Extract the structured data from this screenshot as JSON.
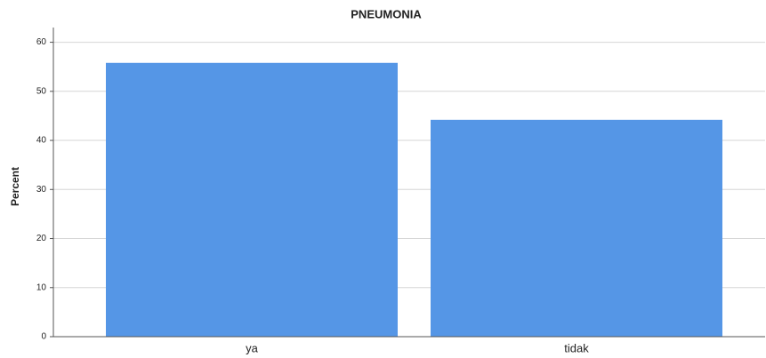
{
  "chart_data": {
    "type": "bar",
    "title": "PNEUMONIA",
    "y_label": "Percent",
    "categories": [
      "ya",
      "tidak"
    ],
    "values": [
      55.8,
      44.2
    ],
    "color": "#5596e6",
    "ylim": [
      0,
      63
    ],
    "yticks": [
      0,
      10,
      20,
      30,
      40,
      50,
      60
    ],
    "grid": true
  }
}
